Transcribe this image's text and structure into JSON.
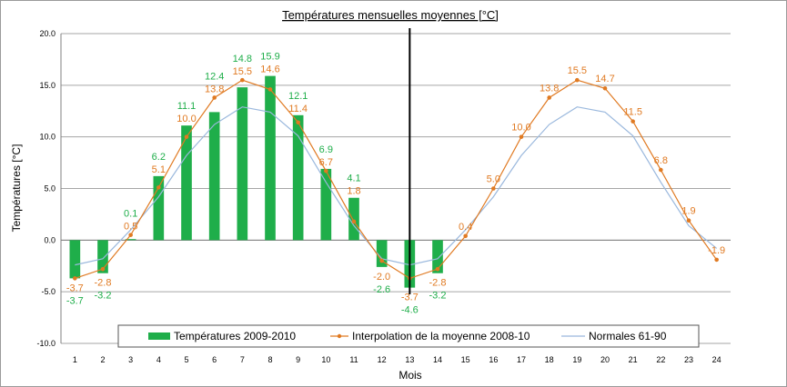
{
  "chart_data": {
    "type": "bar",
    "title": "Températures mensuelles moyennes  [°C]",
    "xlabel": "Mois",
    "ylabel": "Températures [°C]",
    "ylim": [
      -10,
      20
    ],
    "ytick_step": 5,
    "grid": true,
    "legend_position": "bottom",
    "x": [
      1,
      2,
      3,
      4,
      5,
      6,
      7,
      8,
      9,
      10,
      11,
      12,
      13,
      14,
      15,
      16,
      17,
      18,
      19,
      20,
      21,
      22,
      23,
      24
    ],
    "xtick_labels": [
      "1",
      "2",
      "3",
      "4",
      "5",
      "6",
      "7",
      "8",
      "9",
      "10",
      "11",
      "12",
      "13",
      "14",
      "15",
      "16",
      "17",
      "18",
      "19",
      "20",
      "21",
      "22",
      "23",
      "24"
    ],
    "ytick_labels": [
      "20.0",
      "15.0",
      "10.0",
      "5.0",
      "0.0",
      "-5.0",
      "-10.0"
    ],
    "divider_x": 12.5,
    "series": [
      {
        "name": "Températures 2009-2010",
        "kind": "bar",
        "color": "#1fae4a",
        "label_color": "#1fae4a",
        "values": [
          -3.7,
          -3.2,
          0.1,
          6.2,
          11.1,
          12.4,
          14.8,
          15.9,
          12.1,
          6.9,
          4.1,
          -2.6,
          -4.6,
          -3.2,
          null,
          null,
          null,
          null,
          null,
          null,
          null,
          null,
          null,
          null
        ],
        "labels": [
          "-3.7",
          "-3.2",
          "0.1",
          "6.2",
          "11.1",
          "12.4",
          "14.8",
          "15.9",
          "12.1",
          "6.9",
          "4.1",
          "-2.6",
          "-4.6",
          "-3.2",
          "",
          "",
          "",
          "",
          "",
          "",
          "",
          "",
          "",
          ""
        ]
      },
      {
        "name": "Interpolation de la moyenne 2008-10",
        "kind": "line",
        "color": "#e07a22",
        "label_color": "#e07a22",
        "values": [
          -3.7,
          -2.8,
          0.5,
          5.1,
          10.0,
          13.8,
          15.5,
          14.6,
          11.4,
          6.7,
          1.8,
          -2.0,
          -3.7,
          -2.8,
          0.4,
          5.0,
          10.0,
          13.8,
          15.5,
          14.7,
          11.5,
          6.8,
          1.9,
          -1.9
        ],
        "labels": [
          "-3.7",
          "-2.8",
          "0.5",
          "5.1",
          "10.0",
          "13.8",
          "15.5",
          "14.6",
          "11.4",
          "6.7",
          "1.8",
          "-2.0",
          "-3.7",
          "-2.8",
          "0.4",
          "5.0",
          "10.0",
          "13.8",
          "15.5",
          "14.7",
          "11.5",
          "6.8",
          "1.9",
          "-1.9"
        ]
      },
      {
        "name": "Normales 61-90",
        "kind": "line",
        "color": "#9ab8dd",
        "values": [
          -2.4,
          -1.8,
          1.0,
          4.2,
          8.2,
          11.2,
          12.9,
          12.4,
          10.1,
          5.6,
          1.4,
          -1.8,
          -2.4,
          -1.8,
          1.0,
          4.2,
          8.2,
          11.2,
          12.9,
          12.4,
          10.1,
          5.6,
          1.4,
          -0.8
        ]
      }
    ]
  }
}
